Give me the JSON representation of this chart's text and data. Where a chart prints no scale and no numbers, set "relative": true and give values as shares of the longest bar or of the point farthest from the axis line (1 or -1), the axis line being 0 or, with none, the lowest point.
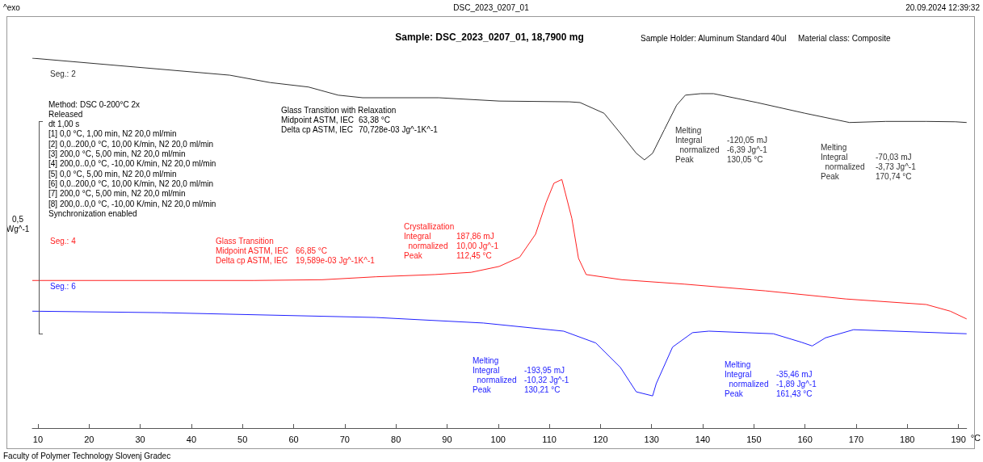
{
  "chart_data": {
    "type": "line",
    "relative": true,
    "title": "Sample: DSC_2023_0207_01, 18,7900 mg",
    "subtitle": "Sample Holder: Aluminum Standard 40ul\tMaterial class: Composite",
    "xlabel": "°C",
    "ylabel": "0,5 Wg^-1",
    "xlim": [
      8.9,
      191.6
    ],
    "xticks": [
      10,
      20,
      30,
      40,
      50,
      60,
      70,
      80,
      90,
      100,
      110,
      120,
      130,
      140,
      150,
      160,
      170,
      180,
      190
    ],
    "legend": false,
    "grid": false,
    "series": [
      {
        "name": "Seg.: 2",
        "color": "#303030",
        "x": [
          8.9,
          47.5,
          55.4,
          62.9,
          68.7,
          73.5,
          88.4,
          100.2,
          113.9,
          116,
          120.7,
          123.9,
          127,
          128.6,
          130.2,
          132.5,
          134.9,
          136.6,
          139.6,
          142.1,
          150.6,
          160,
          168.7,
          175.8,
          183.7,
          189.4,
          191.6
        ],
        "values": [
          1.0,
          0.954,
          0.934,
          0.922,
          0.9,
          0.893,
          0.893,
          0.884,
          0.882,
          0.88,
          0.851,
          0.797,
          0.743,
          0.725,
          0.743,
          0.807,
          0.873,
          0.9,
          0.904,
          0.904,
          0.88,
          0.851,
          0.826,
          0.829,
          0.829,
          0.828,
          0.826
        ]
      },
      {
        "name": "Seg.: 4",
        "color": "#ff2020",
        "x": [
          8.9,
          52.2,
          65.6,
          76.1,
          87.6,
          94.7,
          100.2,
          104.2,
          107.3,
          109.4,
          110.9,
          112.45,
          114.4,
          115.7,
          117.2,
          124.2,
          136.5,
          152.2,
          168,
          183.7,
          188.4,
          191.6
        ],
        "values": [
          0.399,
          0.399,
          0.401,
          0.409,
          0.415,
          0.421,
          0.437,
          0.462,
          0.524,
          0.611,
          0.662,
          0.672,
          0.567,
          0.459,
          0.415,
          0.401,
          0.389,
          0.371,
          0.349,
          0.334,
          0.316,
          0.295
        ]
      },
      {
        "name": "Seg.: 6",
        "color": "#2020ff",
        "x": [
          8.9,
          34.1,
          76.1,
          97.1,
          112.8,
          119.1,
          123.9,
          127,
          130.2,
          130.9,
          134.1,
          138,
          141.2,
          153.8,
          159.3,
          161.4,
          164,
          169.5,
          191.6
        ],
        "values": [
          0.316,
          0.312,
          0.299,
          0.284,
          0.262,
          0.23,
          0.164,
          0.098,
          0.087,
          0.12,
          0.219,
          0.258,
          0.262,
          0.255,
          0.232,
          0.222,
          0.244,
          0.266,
          0.255
        ]
      }
    ],
    "annotations": [
      "^exo",
      "DSC_2023_0207_01",
      "20.09.2024 12:39:32",
      "Faculty of Polymer Technology Slovenj Gradec",
      "Method: DSC 0-200°C 2x\nReleased\ndt 1,00 s\n[1] 0,0 °C, 1,00 min, N2 20,0 ml/min\n[2] 0,0..200,0 °C, 10,00 K/min, N2 20,0 ml/min\n[3] 200,0 °C, 5,00 min, N2 20,0 ml/min\n[4] 200,0..0,0 °C, -10,00 K/min, N2 20,0 ml/min\n[5] 0,0 °C, 5,00 min, N2 20,0 ml/min\n[6] 0,0..200,0 °C, 10,00 K/min, N2 20,0 ml/min\n[7] 200,0 °C, 5,00 min, N2 20,0 ml/min\n[8] 200,0..0,0 °C, -10,00 K/min, N2 20,0 ml/min\nSynchronization enabled",
      "Glass Transition with Relaxation\nMidpoint ASTM, IEC\t63,38 °C\nDelta cp ASTM, IEC\t70,728e-03 Jg^-1K^-1",
      "Melting\nIntegral\t-120,05 mJ\n  normalized\t-6,39 Jg^-1\nPeak\t130,05 °C",
      "Melting\nIntegral\t-70,03 mJ\n  normalized\t-3,73 Jg^-1\nPeak\t170,74 °C",
      "Glass Transition\nMidpoint ASTM, IEC\t66,85 °C\nDelta cp ASTM, IEC\t19,589e-03 Jg^-1K^-1",
      "Crystallization\nIntegral\t187,86 mJ\n  normalized\t10,00 Jg^-1\nPeak\t112,45 °C",
      "Melting\nIntegral\t-193,95 mJ\n  normalized\t-10,32 Jg^-1\nPeak\t130,21 °C",
      "Melting\nIntegral\t-35,46 mJ\n  normalized\t-1,89 Jg^-1\nPeak\t161,43 °C"
    ]
  }
}
